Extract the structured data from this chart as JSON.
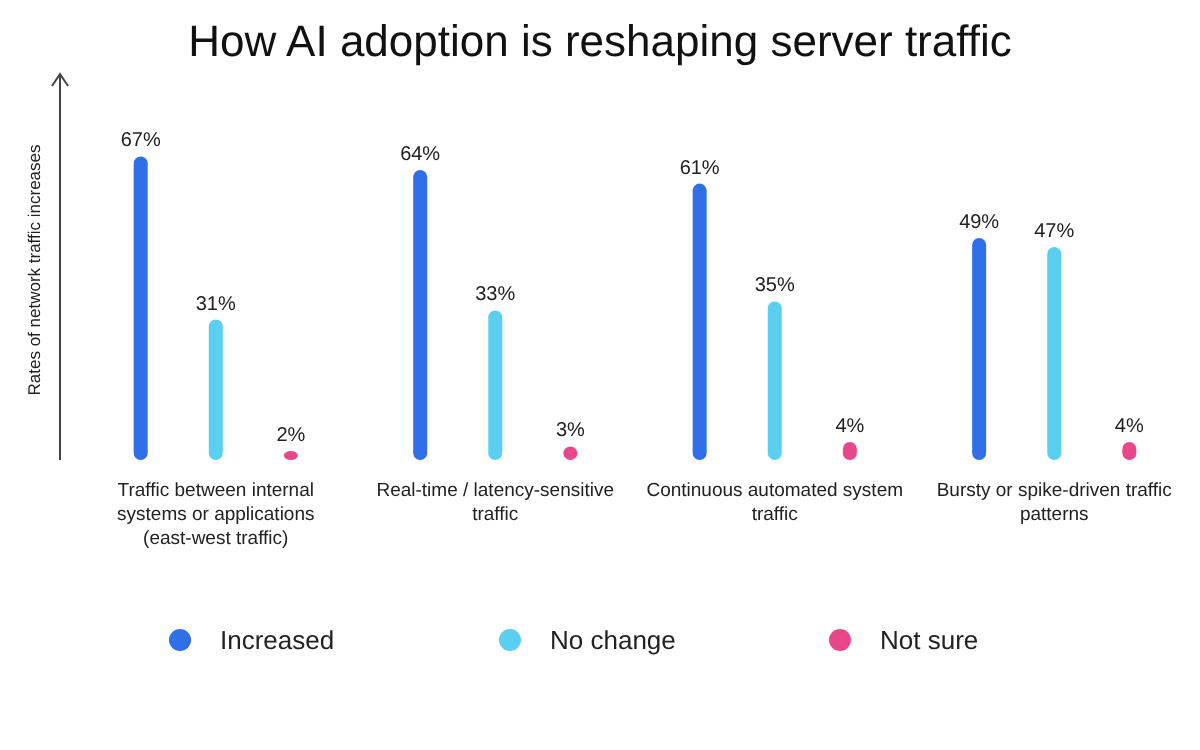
{
  "chart_data": {
    "type": "bar",
    "title": "How AI adoption is reshaping server traffic",
    "ylabel": "Rates of network traffic increases",
    "categories": [
      "Traffic between internal systems or applications (east-west traffic)",
      "Real-time / latency-sensitive traffic",
      "Continuous automated system traffic",
      "Bursty or spike-driven traffic patterns"
    ],
    "series": [
      {
        "name": "Increased",
        "color": "#2f6fe8",
        "values": [
          67,
          64,
          61,
          49
        ],
        "value_labels": [
          "67%",
          "64%",
          "61%",
          "49%"
        ]
      },
      {
        "name": "No change",
        "color": "#5bcff0",
        "values": [
          31,
          33,
          35,
          47
        ],
        "value_labels": [
          "31%",
          "33%",
          "35%",
          "47%"
        ]
      },
      {
        "name": "Not sure",
        "color": "#e8488a",
        "values": [
          2,
          3,
          4,
          4
        ],
        "value_labels": [
          "2%",
          "3%",
          "4%",
          "4%"
        ]
      }
    ],
    "legend": "bottom"
  }
}
